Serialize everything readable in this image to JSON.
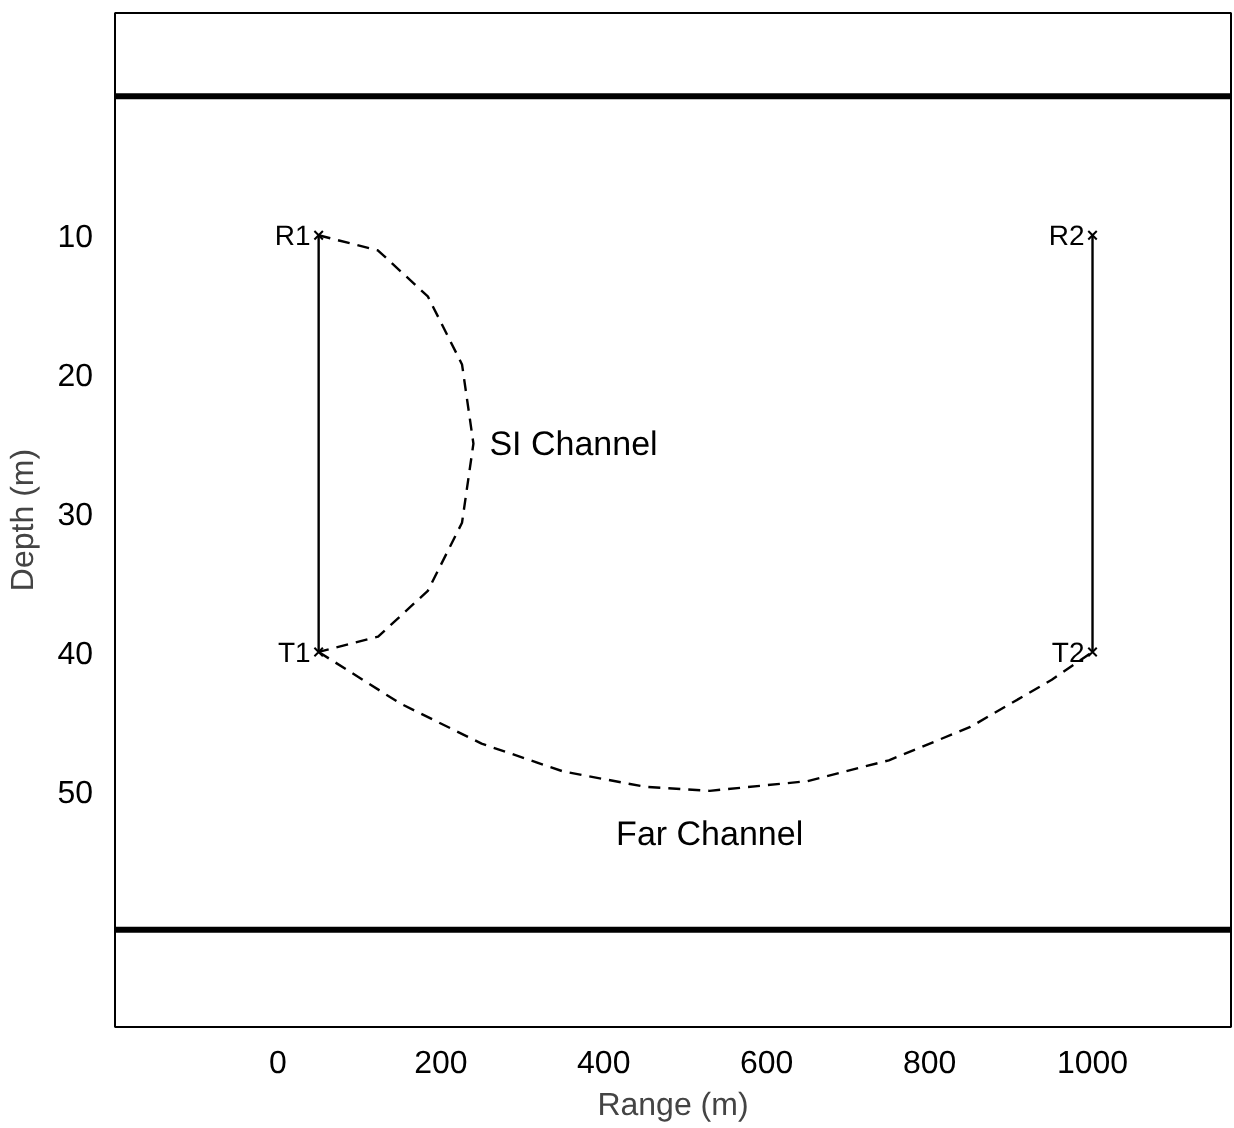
{
  "chart_data": {
    "type": "line",
    "xlabel": "Range (m)",
    "ylabel": "Depth (m)",
    "xlim": [
      -200,
      1170
    ],
    "ylim": [
      67,
      -6
    ],
    "xticks": [
      0,
      200,
      400,
      600,
      800,
      1000
    ],
    "yticks": [
      10,
      20,
      30,
      40,
      50
    ],
    "grid": false,
    "series": [
      {
        "color": "#000000",
        "line_style": "solid",
        "x": [
          50,
          50
        ],
        "values": [
          10,
          40
        ]
      },
      {
        "color": "#000000",
        "line_style": "solid",
        "x": [
          1000,
          1000
        ],
        "values": [
          10,
          40
        ]
      },
      {
        "color": "#000000",
        "line_style": "dashed",
        "x": [
          50,
          123,
          184,
          226,
          240,
          226,
          184,
          123,
          50
        ],
        "values": [
          10,
          11.1,
          14.4,
          19.3,
          25,
          30.7,
          35.6,
          38.9,
          40
        ]
      },
      {
        "color": "#000000",
        "line_style": "dashed",
        "x": [
          50,
          150,
          250,
          350,
          450,
          530,
          650,
          750,
          850,
          950,
          1000
        ],
        "values": [
          40,
          43.7,
          46.6,
          48.6,
          49.7,
          50,
          49.3,
          47.8,
          45.4,
          42,
          40
        ]
      },
      {
        "type": "scatter",
        "color": "#000000",
        "marker": "cross",
        "x": [
          50,
          1000,
          50,
          1000
        ],
        "values": [
          10,
          10,
          40,
          40
        ]
      }
    ],
    "ref_lines": [
      {
        "axis": "y",
        "value": 0,
        "color": "#000000"
      },
      {
        "axis": "y",
        "value": 60,
        "color": "#000000"
      }
    ],
    "annotations": [
      {
        "text": "R1",
        "x": 50,
        "y": 10
      },
      {
        "text": "R2",
        "x": 1000,
        "y": 10
      },
      {
        "text": "T1",
        "x": 50,
        "y": 40
      },
      {
        "text": "T2",
        "x": 1000,
        "y": 40
      },
      {
        "text": "SI Channel",
        "x": 240,
        "y": 25
      },
      {
        "text": "Far Channel",
        "x": 530,
        "y": 50
      }
    ]
  }
}
